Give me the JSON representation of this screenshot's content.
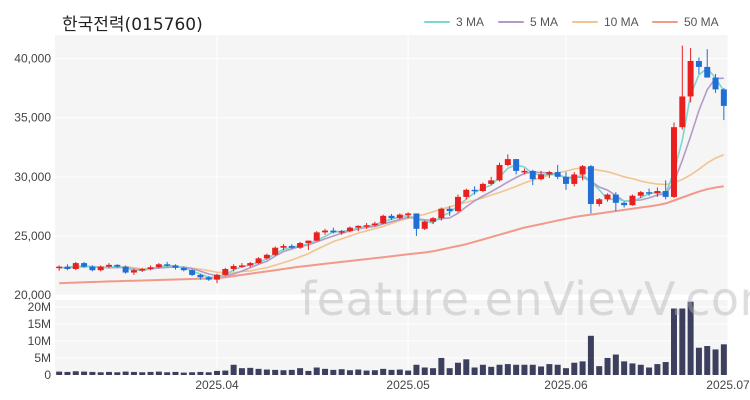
{
  "chart_data": {
    "type": "candlestick",
    "title": "한국전력(015760)",
    "watermark": "feature.enVievV.com",
    "legend": [
      {
        "name": "3 MA",
        "color": "#7dd6cf"
      },
      {
        "name": "5 MA",
        "color": "#b49ac9"
      },
      {
        "name": "10 MA",
        "color": "#f2c48f"
      },
      {
        "name": "50 MA",
        "color": "#f29a8a"
      }
    ],
    "colors": {
      "up": "#e8201f",
      "down": "#1f6fd6",
      "volume": "#3d3f5e"
    },
    "price_axis": {
      "ylim": [
        20000,
        42000
      ],
      "ticks": [
        20000,
        25000,
        30000,
        35000,
        40000
      ],
      "tick_labels": [
        "20,000",
        "25,000",
        "30,000",
        "35,000",
        "40,000"
      ]
    },
    "volume_axis": {
      "ylim": [
        0,
        22000000
      ],
      "ticks": [
        0,
        5000000,
        10000000,
        15000000,
        20000000
      ],
      "tick_labels": [
        "0",
        "5M",
        "10M",
        "15M",
        "20M"
      ]
    },
    "x_axis": {
      "tick_indices": [
        19,
        42,
        61,
        83
      ],
      "tick_labels": [
        "2025.04",
        "2025.05",
        "2025.06",
        "2025.07"
      ]
    },
    "candles": [
      [
        22300,
        22500,
        22050,
        22400,
        1000000
      ],
      [
        22400,
        22600,
        22100,
        22200,
        900000
      ],
      [
        22200,
        22800,
        22100,
        22700,
        1100000
      ],
      [
        22700,
        22800,
        22300,
        22400,
        1000000
      ],
      [
        22400,
        22500,
        22000,
        22100,
        900000
      ],
      [
        22100,
        22500,
        22000,
        22400,
        800000
      ],
      [
        22400,
        22700,
        22300,
        22550,
        900000
      ],
      [
        22550,
        22600,
        22300,
        22400,
        800000
      ],
      [
        22400,
        22500,
        21800,
        21900,
        1000000
      ],
      [
        21900,
        22200,
        21700,
        22100,
        900000
      ],
      [
        22100,
        22300,
        21950,
        22200,
        800000
      ],
      [
        22200,
        22500,
        22100,
        22350,
        900000
      ],
      [
        22350,
        22700,
        22250,
        22600,
        1000000
      ],
      [
        22600,
        22800,
        22400,
        22500,
        800000
      ],
      [
        22500,
        22600,
        22150,
        22300,
        900000
      ],
      [
        22300,
        22400,
        22000,
        22100,
        700000
      ],
      [
        22100,
        22200,
        21600,
        21700,
        800000
      ],
      [
        21700,
        21800,
        21300,
        21500,
        900000
      ],
      [
        21500,
        21600,
        21200,
        21300,
        800000
      ],
      [
        21300,
        21800,
        21000,
        21700,
        1200000
      ],
      [
        21700,
        22300,
        21650,
        22200,
        1300000
      ],
      [
        22200,
        22600,
        22000,
        22450,
        3000000
      ],
      [
        22450,
        22700,
        22300,
        22500,
        2000000
      ],
      [
        22500,
        22800,
        22350,
        22700,
        2100000
      ],
      [
        22700,
        23200,
        22650,
        23100,
        1800000
      ],
      [
        23100,
        23500,
        23000,
        23400,
        1600000
      ],
      [
        23400,
        24100,
        23300,
        24000,
        1500000
      ],
      [
        24000,
        24300,
        23800,
        24150,
        1400000
      ],
      [
        24150,
        24300,
        23900,
        24000,
        1500000
      ],
      [
        24000,
        24500,
        23900,
        24400,
        2000000
      ],
      [
        24400,
        24600,
        23800,
        24600,
        1200000
      ],
      [
        24600,
        25400,
        24550,
        25300,
        2200000
      ],
      [
        25300,
        25600,
        25100,
        25450,
        1800000
      ],
      [
        25450,
        25700,
        25200,
        25300,
        1500000
      ],
      [
        25300,
        25500,
        25100,
        25400,
        1700000
      ],
      [
        25400,
        25800,
        25300,
        25700,
        1400000
      ],
      [
        25700,
        25900,
        25400,
        25850,
        1600000
      ],
      [
        25850,
        26100,
        25600,
        25900,
        1300000
      ],
      [
        25900,
        26200,
        25800,
        26050,
        1400000
      ],
      [
        26050,
        26800,
        26000,
        26700,
        1800000
      ],
      [
        26700,
        26850,
        26350,
        26500,
        1500000
      ],
      [
        26500,
        26900,
        26400,
        26800,
        1600000
      ],
      [
        26800,
        27000,
        26500,
        26900,
        1300000
      ],
      [
        26900,
        26900,
        25000,
        25600,
        3000000
      ],
      [
        25600,
        26300,
        25500,
        26200,
        2200000
      ],
      [
        26200,
        26600,
        26000,
        26500,
        2000000
      ],
      [
        26500,
        27400,
        26300,
        27300,
        5000000
      ],
      [
        27300,
        27500,
        26700,
        27100,
        2000000
      ],
      [
        27100,
        28500,
        27000,
        28300,
        3600000
      ],
      [
        28300,
        29000,
        28100,
        28900,
        4600000
      ],
      [
        28900,
        29200,
        28500,
        28800,
        2200000
      ],
      [
        28800,
        29500,
        28700,
        29400,
        3000000
      ],
      [
        29400,
        30000,
        29300,
        29700,
        2400000
      ],
      [
        29700,
        31200,
        29600,
        31000,
        3000000
      ],
      [
        31000,
        31900,
        30900,
        31500,
        3200000
      ],
      [
        31500,
        31500,
        30200,
        30500,
        3000000
      ],
      [
        30500,
        30700,
        30200,
        30500,
        3000000
      ],
      [
        30500,
        30600,
        29300,
        29800,
        3000000
      ],
      [
        29800,
        30500,
        29700,
        30200,
        2500000
      ],
      [
        30200,
        30500,
        29900,
        30400,
        3200000
      ],
      [
        30400,
        31000,
        29800,
        30000,
        3000000
      ],
      [
        30000,
        30400,
        28900,
        29400,
        2000000
      ],
      [
        29400,
        30400,
        29200,
        30200,
        3600000
      ],
      [
        30200,
        31000,
        29700,
        30900,
        4000000
      ],
      [
        30900,
        31000,
        26900,
        27700,
        11500000
      ],
      [
        27700,
        28200,
        27500,
        28100,
        2600000
      ],
      [
        28100,
        28600,
        27900,
        28500,
        5000000
      ],
      [
        28500,
        28700,
        27100,
        27800,
        6000000
      ],
      [
        27800,
        27900,
        27400,
        27600,
        4000000
      ],
      [
        27600,
        28500,
        27550,
        28400,
        3400000
      ],
      [
        28400,
        28800,
        28200,
        28700,
        3000000
      ],
      [
        28700,
        29000,
        28400,
        28600,
        2200000
      ],
      [
        28600,
        29100,
        28300,
        28800,
        3200000
      ],
      [
        28800,
        29700,
        28100,
        28300,
        3800000
      ],
      [
        28300,
        34600,
        28200,
        34200,
        19500000
      ],
      [
        34200,
        41100,
        34000,
        36800,
        19500000
      ],
      [
        36800,
        40900,
        36300,
        39800,
        21500000
      ],
      [
        39800,
        40100,
        38700,
        39300,
        8000000
      ],
      [
        39300,
        40800,
        38400,
        38400,
        8500000
      ],
      [
        38400,
        38700,
        37100,
        37400,
        7500000
      ],
      [
        37400,
        37500,
        34800,
        36000,
        9000000
      ]
    ],
    "ma3": [
      22300,
      22330,
      22433,
      22433,
      22400,
      22300,
      22350,
      22417,
      22283,
      22133,
      22067,
      22217,
      22383,
      22483,
      22467,
      22300,
      22033,
      21767,
      21500,
      21500,
      21733,
      22117,
      22383,
      22550,
      22767,
      23067,
      23500,
      23850,
      24050,
      24183,
      24333,
      24633,
      24950,
      25350,
      25383,
      25483,
      25650,
      25817,
      25933,
      26217,
      26417,
      26617,
      26733,
      26433,
      26233,
      26100,
      26667,
      26967,
      27567,
      28100,
      28667,
      29033,
      29300,
      29967,
      30733,
      31000,
      30833,
      30267,
      30167,
      30167,
      30200,
      29867,
      29867,
      30167,
      29600,
      28900,
      28100,
      28133,
      27967,
      27933,
      28233,
      28567,
      28700,
      28567,
      30433,
      33100,
      36933,
      38633,
      39167,
      38367,
      37267
    ],
    "ma5": [
      22300,
      22320,
      22400,
      22420,
      22400,
      22330,
      22300,
      22330,
      22310,
      22190,
      22120,
      22190,
      22290,
      22330,
      22390,
      22350,
      22240,
      22020,
      21780,
      21640,
      21630,
      21780,
      22020,
      22300,
      22600,
      22850,
      23290,
      23680,
      23890,
      24110,
      24230,
      24490,
      24750,
      24990,
      25220,
      25420,
      25580,
      25720,
      25800,
      26020,
      26200,
      26390,
      26580,
      26460,
      26360,
      26300,
      26460,
      26520,
      26920,
      27460,
      27960,
      28380,
      28740,
      29150,
      29560,
      29940,
      30280,
      30420,
      30360,
      30340,
      30180,
      29940,
      29960,
      29980,
      29640,
      29140,
      28880,
      28420,
      27940,
      28000,
      28040,
      28220,
      28460,
      28560,
      29560,
      31400,
      33420,
      35600,
      37360,
      38340,
      38340
    ],
    "ma10": [
      22300,
      22310,
      22350,
      22380,
      22400,
      22380,
      22370,
      22380,
      22380,
      22310,
      22220,
      22230,
      22290,
      22360,
      22400,
      22350,
      22270,
      22180,
      22060,
      21930,
      21870,
      21880,
      21990,
      22040,
      22190,
      22310,
      22520,
      22740,
      22960,
      23220,
      23500,
      23860,
      24190,
      24520,
      24750,
      24990,
      25240,
      25430,
      25620,
      25810,
      26050,
      26290,
      26480,
      26660,
      26820,
      27040,
      27260,
      27460,
      27660,
      27840,
      28020,
      28220,
      28460,
      28670,
      28930,
      29190,
      29480,
      29730,
      29930,
      30150,
      30350,
      30480,
      30660,
      30760,
      30690,
      30550,
      30430,
      30230,
      30000,
      29850,
      29640,
      29490,
      29380,
      29350,
      29500,
      29770,
      30170,
      30640,
      31170,
      31580,
      31870
    ],
    "ma50": [
      21000,
      21020,
      21050,
      21080,
      21100,
      21120,
      21150,
      21170,
      21190,
      21210,
      21230,
      21250,
      21270,
      21290,
      21310,
      21330,
      21350,
      21370,
      21400,
      21430,
      21500,
      21600,
      21700,
      21800,
      21900,
      22000,
      22100,
      22200,
      22300,
      22400,
      22480,
      22560,
      22640,
      22720,
      22800,
      22880,
      22960,
      23040,
      23120,
      23200,
      23280,
      23360,
      23440,
      23520,
      23600,
      23700,
      23850,
      24000,
      24150,
      24300,
      24500,
      24700,
      24900,
      25100,
      25300,
      25500,
      25700,
      25850,
      26000,
      26150,
      26300,
      26450,
      26600,
      26700,
      26800,
      26900,
      27000,
      27100,
      27200,
      27300,
      27400,
      27500,
      27600,
      27750,
      28000,
      28250,
      28500,
      28750,
      28950,
      29100,
      29200
    ]
  }
}
